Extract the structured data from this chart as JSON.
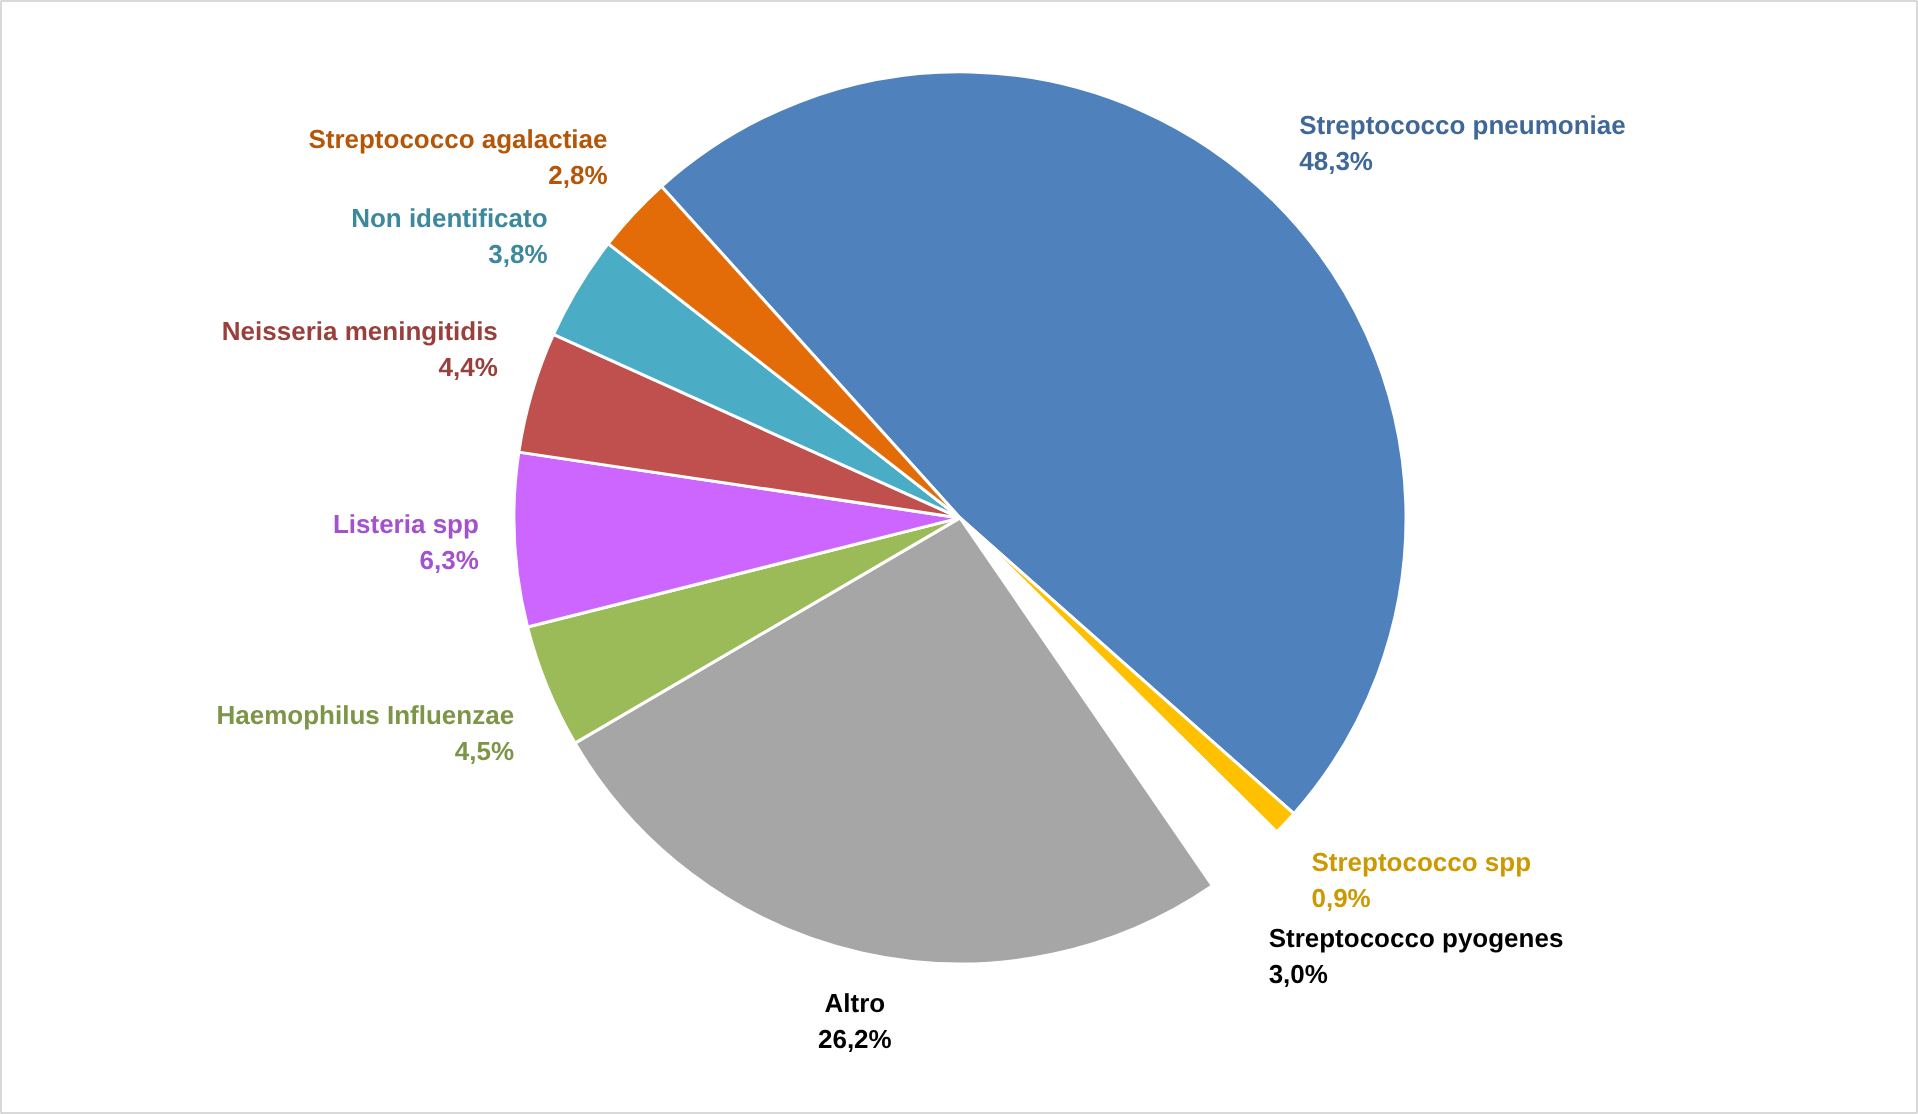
{
  "chart_data": {
    "type": "pie",
    "categories": [
      "Streptococco pneumoniae",
      "Streptococco spp",
      "Streptococco pyogenes",
      "Altro",
      "Haemophilus Influenzae",
      "Listeria spp",
      "Neisseria meningitidis",
      "Non identificato",
      "Streptococco agalactiae"
    ],
    "values": [
      48.3,
      0.9,
      3.0,
      26.2,
      4.5,
      6.3,
      4.4,
      3.8,
      2.8
    ],
    "colors": [
      "#4f81bd",
      "#ffc000",
      "#ffffff",
      "#a6a6a6",
      "#9bbb59",
      "#cc66ff",
      "#c0504d",
      "#4bacc6",
      "#e36c09"
    ],
    "value_labels": [
      "48,3%",
      "0,9%",
      "3,0%",
      "26,2%",
      "4,5%",
      "6,3%",
      "4,4%",
      "3,8%",
      "2,8%"
    ]
  }
}
